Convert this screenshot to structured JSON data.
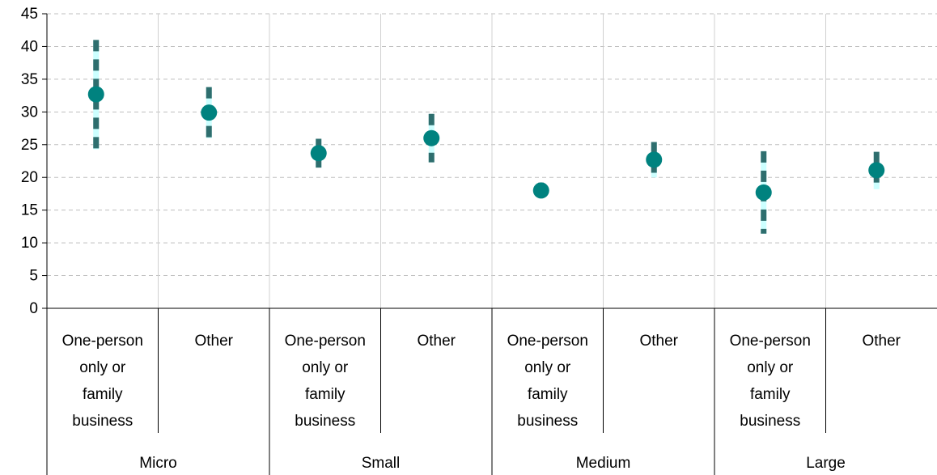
{
  "chart_data": {
    "type": "scatter",
    "title": "",
    "xlabel": "",
    "ylabel": "",
    "ylim": [
      0,
      45
    ],
    "yticks": [
      0,
      5,
      10,
      15,
      20,
      25,
      30,
      35,
      40,
      45
    ],
    "grid": true,
    "legend": "none",
    "colors": {
      "point": "#00827F",
      "ci_dark": "#2E6E6E",
      "ci_light": "#CCFFFF",
      "grid": "#BFBFBF",
      "axis": "#000000"
    },
    "groups": [
      {
        "label": "Micro",
        "categories": [
          {
            "label": [
              "One-person",
              "only or",
              "family",
              "business"
            ],
            "value": 32.7,
            "ci": [
              24.3,
              41.0
            ]
          },
          {
            "label": [
              "Other"
            ],
            "value": 29.9,
            "ci": [
              26.0,
              33.8
            ]
          }
        ]
      },
      {
        "label": "Small",
        "categories": [
          {
            "label": [
              "One-person",
              "only or",
              "family",
              "business"
            ],
            "value": 23.7,
            "ci": [
              21.5,
              25.9
            ]
          },
          {
            "label": [
              "Other"
            ],
            "value": 26.0,
            "ci": [
              22.3,
              29.7
            ]
          }
        ]
      },
      {
        "label": "Medium",
        "categories": [
          {
            "label": [
              "One-person",
              "only or",
              "family",
              "business"
            ],
            "value": 18.0,
            "ci": [
              16.8,
              19.2
            ]
          },
          {
            "label": [
              "Other"
            ],
            "value": 22.7,
            "ci": [
              20.0,
              25.4
            ]
          }
        ]
      },
      {
        "label": "Large",
        "categories": [
          {
            "label": [
              "One-person",
              "only or",
              "family",
              "business"
            ],
            "value": 17.7,
            "ci": [
              11.4,
              24.0
            ]
          },
          {
            "label": [
              "Other"
            ],
            "value": 21.1,
            "ci": [
              18.2,
              23.9
            ]
          }
        ]
      }
    ]
  }
}
